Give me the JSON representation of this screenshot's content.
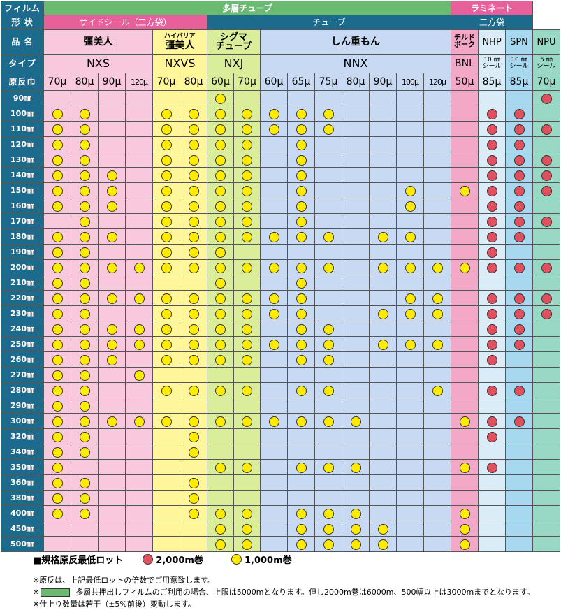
{
  "header": {
    "film_label": "フィルム",
    "film_multilayer": "多層チューブ",
    "film_laminate": "ラミネート",
    "shape_label": "形 状",
    "shape_side_seal": "サイドシール（三方袋）",
    "shape_tube": "チューブ",
    "shape_three_side": "三方袋",
    "name_label": "品 名",
    "name_kyobijin": "彊美人",
    "name_highbarrier_prefix": "ハイバリア",
    "name_highbarrier": "彊美人",
    "name_sigma_1": "シグマ",
    "name_sigma_2": "チューブ",
    "name_shinjumon": "しん重もん",
    "name_chilled_1": "チルド",
    "name_chilled_2": "ポーク",
    "name_nhp": "NHP",
    "name_spn": "SPN",
    "name_npu": "NPU",
    "type_label": "タイプ",
    "type_nxs": "NXS",
    "type_nxvs": "NXVS",
    "type_nxj": "NXJ",
    "type_nnx": "NNX",
    "type_bnl": "BNL",
    "type_nhp_1": "10 ㎜",
    "type_nhp_2": "シール",
    "type_spn_1": "10 ㎜",
    "type_spn_2": "シール",
    "type_npu_1": "5 ㎜",
    "type_npu_2": "シール",
    "thickness_label": "原反巾"
  },
  "columns": [
    {
      "id": "nxs70",
      "thick": "70μ",
      "bg": "#f8c8dc"
    },
    {
      "id": "nxs80",
      "thick": "80μ",
      "bg": "#f8c8dc"
    },
    {
      "id": "nxs90",
      "thick": "90μ",
      "bg": "#f8c8dc"
    },
    {
      "id": "nxs120",
      "thick": "120μ",
      "bg": "#f8c8dc"
    },
    {
      "id": "nxvs70",
      "thick": "70μ",
      "bg": "#fff59a"
    },
    {
      "id": "nxvs80",
      "thick": "80μ",
      "bg": "#fff59a"
    },
    {
      "id": "nxj60",
      "thick": "60μ",
      "bg": "#d9ed9a"
    },
    {
      "id": "nxj70",
      "thick": "70μ",
      "bg": "#d9ed9a"
    },
    {
      "id": "nnx60",
      "thick": "60μ",
      "bg": "#c7d9f3"
    },
    {
      "id": "nnx65",
      "thick": "65μ",
      "bg": "#c7d9f3"
    },
    {
      "id": "nnx75",
      "thick": "75μ",
      "bg": "#c7d9f3"
    },
    {
      "id": "nnx80",
      "thick": "80μ",
      "bg": "#c7d9f3"
    },
    {
      "id": "nnx90",
      "thick": "90μ",
      "bg": "#c7d9f3"
    },
    {
      "id": "nnx100",
      "thick": "100μ",
      "bg": "#c7d9f3"
    },
    {
      "id": "nnx120",
      "thick": "120μ",
      "bg": "#c7d9f3"
    },
    {
      "id": "bnl50",
      "thick": "50μ",
      "bg": "#f4a8c8"
    },
    {
      "id": "nhp85",
      "thick": "85μ",
      "bg": "#d9ecf8"
    },
    {
      "id": "spn85",
      "thick": "85μ",
      "bg": "#a8d8f0"
    },
    {
      "id": "npu70",
      "thick": "70μ",
      "bg": "#98d8c4"
    }
  ],
  "colors": {
    "label_bg": "#1c6a8c",
    "multilayer_bg": "#6aba6f",
    "laminate_bg": "#e8609a",
    "yellow_dot": "#ffeb00",
    "red_dot": "#e0505e"
  },
  "rows": [
    {
      "width": "90㎜",
      "cells": [
        "-",
        "-",
        "-",
        "-",
        "-",
        "-",
        "y",
        "-",
        "-",
        "-",
        "-",
        "-",
        "-",
        "-",
        "-",
        "-",
        "-",
        "-",
        "r"
      ]
    },
    {
      "width": "100㎜",
      "cells": [
        "y",
        "y",
        "-",
        "-",
        "y",
        "y",
        "y",
        "y",
        "y",
        "y",
        "y",
        "-",
        "-",
        "-",
        "-",
        "-",
        "r",
        "r",
        "-"
      ]
    },
    {
      "width": "110㎜",
      "cells": [
        "y",
        "y",
        "-",
        "-",
        "y",
        "y",
        "y",
        "y",
        "y",
        "y",
        "y",
        "-",
        "-",
        "-",
        "-",
        "-",
        "r",
        "r",
        "r"
      ]
    },
    {
      "width": "120㎜",
      "cells": [
        "y",
        "y",
        "-",
        "-",
        "y",
        "y",
        "y",
        "y",
        "-",
        "y",
        "-",
        "-",
        "-",
        "-",
        "-",
        "-",
        "r",
        "r",
        "-"
      ]
    },
    {
      "width": "130㎜",
      "cells": [
        "y",
        "y",
        "-",
        "-",
        "y",
        "y",
        "y",
        "y",
        "-",
        "y",
        "-",
        "-",
        "-",
        "-",
        "-",
        "-",
        "r",
        "r",
        "r"
      ]
    },
    {
      "width": "140㎜",
      "cells": [
        "y",
        "y",
        "y",
        "-",
        "y",
        "y",
        "y",
        "y",
        "-",
        "y",
        "-",
        "-",
        "-",
        "-",
        "-",
        "-",
        "r",
        "r",
        "r"
      ]
    },
    {
      "width": "150㎜",
      "cells": [
        "y",
        "y",
        "y",
        "-",
        "y",
        "y",
        "y",
        "y",
        "-",
        "y",
        "-",
        "-",
        "-",
        "y",
        "-",
        "y",
        "r",
        "r",
        "r"
      ]
    },
    {
      "width": "160㎜",
      "cells": [
        "y",
        "y",
        "y",
        "-",
        "y",
        "y",
        "y",
        "y",
        "-",
        "y",
        "-",
        "-",
        "-",
        "y",
        "-",
        "-",
        "r",
        "r",
        "-"
      ]
    },
    {
      "width": "170㎜",
      "cells": [
        "-",
        "y",
        "-",
        "-",
        "y",
        "y",
        "y",
        "y",
        "-",
        "y",
        "-",
        "-",
        "-",
        "-",
        "-",
        "-",
        "r",
        "r",
        "r"
      ]
    },
    {
      "width": "180㎜",
      "cells": [
        "y",
        "y",
        "y",
        "-",
        "y",
        "y",
        "y",
        "y",
        "y",
        "y",
        "y",
        "-",
        "y",
        "y",
        "-",
        "-",
        "r",
        "r",
        "-"
      ]
    },
    {
      "width": "190㎜",
      "cells": [
        "y",
        "y",
        "-",
        "-",
        "y",
        "y",
        "y",
        "-",
        "-",
        "-",
        "-",
        "-",
        "-",
        "-",
        "-",
        "-",
        "r",
        "-",
        "-"
      ]
    },
    {
      "width": "200㎜",
      "cells": [
        "y",
        "y",
        "y",
        "y",
        "y",
        "y",
        "y",
        "y",
        "y",
        "y",
        "y",
        "-",
        "y",
        "y",
        "y",
        "y",
        "r",
        "r",
        "r"
      ]
    },
    {
      "width": "210㎜",
      "cells": [
        "y",
        "y",
        "-",
        "-",
        "-",
        "-",
        "y",
        "-",
        "-",
        "y",
        "-",
        "-",
        "-",
        "-",
        "-",
        "-",
        "-",
        "-",
        "-"
      ]
    },
    {
      "width": "220㎜",
      "cells": [
        "y",
        "y",
        "y",
        "y",
        "y",
        "y",
        "y",
        "y",
        "y",
        "y",
        "-",
        "-",
        "-",
        "y",
        "y",
        "-",
        "r",
        "r",
        "r"
      ]
    },
    {
      "width": "230㎜",
      "cells": [
        "y",
        "y",
        "-",
        "-",
        "y",
        "y",
        "y",
        "y",
        "y",
        "y",
        "-",
        "-",
        "y",
        "y",
        "y",
        "-",
        "r",
        "r",
        "r"
      ]
    },
    {
      "width": "240㎜",
      "cells": [
        "y",
        "y",
        "y",
        "y",
        "y",
        "y",
        "y",
        "y",
        "-",
        "y",
        "y",
        "-",
        "-",
        "-",
        "-",
        "-",
        "r",
        "r",
        "-"
      ]
    },
    {
      "width": "250㎜",
      "cells": [
        "y",
        "y",
        "y",
        "y",
        "y",
        "y",
        "y",
        "y",
        "y",
        "y",
        "y",
        "-",
        "y",
        "y",
        "y",
        "-",
        "r",
        "r",
        "-"
      ]
    },
    {
      "width": "260㎜",
      "cells": [
        "y",
        "y",
        "y",
        "-",
        "y",
        "y",
        "y",
        "y",
        "-",
        "y",
        "y",
        "-",
        "-",
        "-",
        "-",
        "-",
        "r",
        "-",
        "-"
      ]
    },
    {
      "width": "270㎜",
      "cells": [
        "y",
        "y",
        "-",
        "y",
        "-",
        "-",
        "-",
        "-",
        "-",
        "-",
        "-",
        "-",
        "-",
        "-",
        "-",
        "-",
        "-",
        "-",
        "-"
      ]
    },
    {
      "width": "280㎜",
      "cells": [
        "y",
        "y",
        "-",
        "-",
        "y",
        "y",
        "y",
        "y",
        "-",
        "y",
        "y",
        "-",
        "-",
        "-",
        "y",
        "-",
        "r",
        "r",
        "-"
      ]
    },
    {
      "width": "290㎜",
      "cells": [
        "y",
        "y",
        "-",
        "-",
        "-",
        "-",
        "-",
        "-",
        "-",
        "-",
        "-",
        "-",
        "-",
        "-",
        "-",
        "-",
        "-",
        "-",
        "-"
      ]
    },
    {
      "width": "300㎜",
      "cells": [
        "y",
        "y",
        "y",
        "y",
        "y",
        "y",
        "y",
        "y",
        "y",
        "y",
        "y",
        "y",
        "-",
        "-",
        "-",
        "y",
        "r",
        "r",
        "-"
      ]
    },
    {
      "width": "320㎜",
      "cells": [
        "y",
        "y",
        "-",
        "-",
        "-",
        "y",
        "-",
        "-",
        "-",
        "-",
        "-",
        "-",
        "-",
        "-",
        "-",
        "-",
        "r",
        "-",
        "-"
      ]
    },
    {
      "width": "340㎜",
      "cells": [
        "y",
        "y",
        "-",
        "-",
        "-",
        "y",
        "-",
        "-",
        "-",
        "-",
        "-",
        "-",
        "-",
        "-",
        "-",
        "-",
        "-",
        "-",
        "-"
      ]
    },
    {
      "width": "350㎜",
      "cells": [
        "y",
        "-",
        "-",
        "-",
        "-",
        "-",
        "y",
        "y",
        "-",
        "y",
        "y",
        "y",
        "-",
        "-",
        "-",
        "y",
        "r",
        "-",
        "-"
      ]
    },
    {
      "width": "360㎜",
      "cells": [
        "y",
        "y",
        "-",
        "-",
        "-",
        "y",
        "-",
        "-",
        "-",
        "-",
        "-",
        "-",
        "-",
        "-",
        "-",
        "-",
        "-",
        "-",
        "-"
      ]
    },
    {
      "width": "380㎜",
      "cells": [
        "y",
        "y",
        "-",
        "-",
        "-",
        "y",
        "-",
        "-",
        "-",
        "-",
        "-",
        "-",
        "-",
        "-",
        "-",
        "-",
        "-",
        "-",
        "-"
      ]
    },
    {
      "width": "400㎜",
      "cells": [
        "y",
        "y",
        "-",
        "-",
        "-",
        "y",
        "y",
        "y",
        "-",
        "y",
        "y",
        "y",
        "-",
        "-",
        "-",
        "y",
        "-",
        "-",
        "-"
      ]
    },
    {
      "width": "450㎜",
      "cells": [
        "-",
        "-",
        "-",
        "-",
        "-",
        "-",
        "y",
        "y",
        "-",
        "y",
        "y",
        "y",
        "y",
        "-",
        "-",
        "y",
        "-",
        "-",
        "-"
      ]
    },
    {
      "width": "500㎜",
      "cells": [
        "-",
        "-",
        "-",
        "-",
        "-",
        "-",
        "y",
        "y",
        "-",
        "y",
        "y",
        "y",
        "y",
        "-",
        "-",
        "y",
        "-",
        "-",
        "-"
      ]
    }
  ],
  "legend": {
    "title": "■規格原反最低ロット",
    "red_label": "2,000m巻",
    "yellow_label": "1,000m巻"
  },
  "notes": {
    "note1": "※原反は、上記最低ロットの倍数でご用意致します。",
    "note2_prefix": "※",
    "note2_text": "多層共押出しフィルムのご利用の場合、上限は5000mとなります。但し2000m巻は6000m、500幅以上は3000mまでとなります。",
    "note3": "※仕上り数量は若干（±5%前後）変動します。"
  }
}
